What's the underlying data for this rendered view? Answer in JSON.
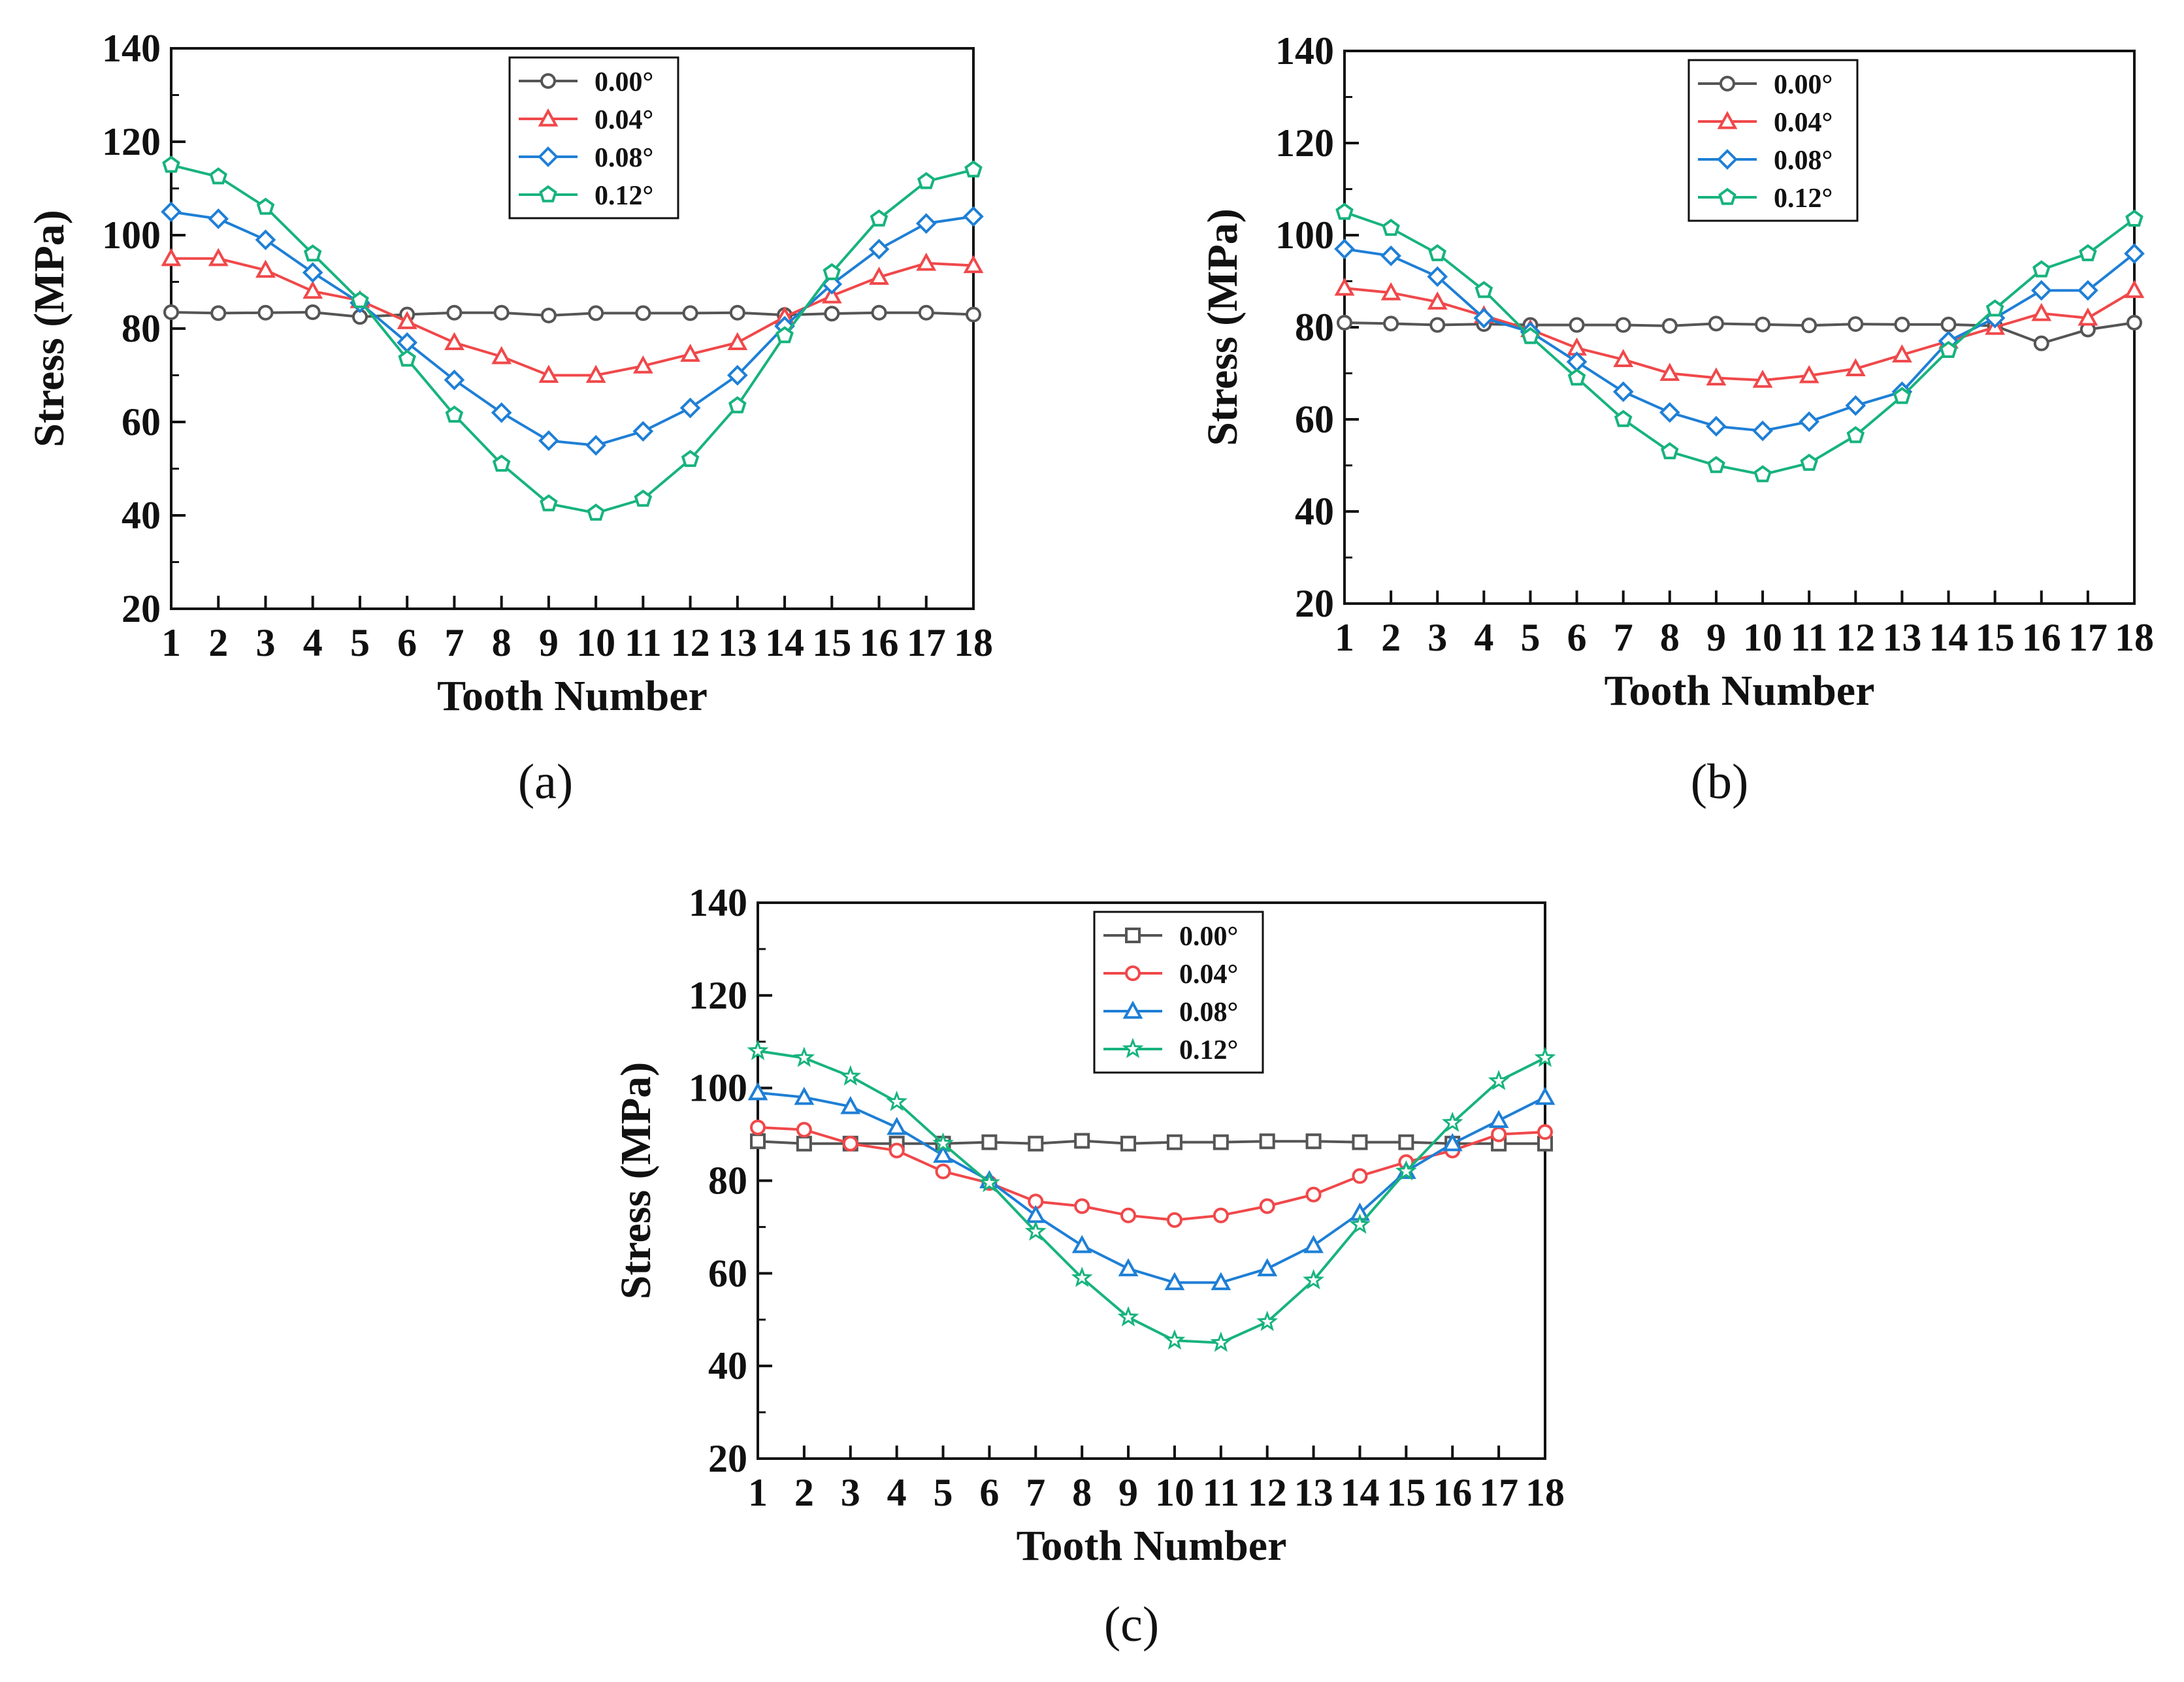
{
  "figure": {
    "panel_labels": [
      "(a)",
      "(b)",
      "(c)"
    ]
  },
  "colors": {
    "0.00°": "#555555",
    "0.04°": "#f0484a",
    "0.08°": "#1e7fd6",
    "0.12°": "#17b37d",
    "axis": "#111111"
  },
  "chart_data": [
    {
      "type": "line",
      "panel": "(a)",
      "xlabel": "Tooth Number",
      "ylabel": "Stress (MPa)",
      "ylim": [
        20,
        140
      ],
      "xlim": [
        1,
        18
      ],
      "yticks": [
        20,
        40,
        60,
        80,
        100,
        120,
        140
      ],
      "x": [
        1,
        2,
        3,
        4,
        5,
        6,
        7,
        8,
        9,
        10,
        11,
        12,
        13,
        14,
        15,
        16,
        17,
        18
      ],
      "legend_position": "top-center",
      "series": [
        {
          "name": "0.00°",
          "marker": "circle",
          "color": "#555555",
          "values": [
            83.5,
            83.3,
            83.4,
            83.5,
            82.5,
            83.0,
            83.4,
            83.4,
            82.8,
            83.3,
            83.3,
            83.3,
            83.4,
            82.9,
            83.2,
            83.4,
            83.4,
            83.0
          ]
        },
        {
          "name": "0.04°",
          "marker": "triangle",
          "color": "#f0484a",
          "values": [
            95,
            95,
            92.5,
            88,
            86,
            81.5,
            77,
            74,
            70,
            70,
            72,
            74.5,
            77,
            82.5,
            87,
            91,
            94,
            93.5
          ]
        },
        {
          "name": "0.08°",
          "marker": "diamond",
          "color": "#1e7fd6",
          "values": [
            105,
            103.5,
            99,
            92,
            85.5,
            77,
            69,
            62,
            56,
            55,
            58,
            63,
            70,
            80.5,
            89.5,
            97,
            102.5,
            104
          ]
        },
        {
          "name": "0.12°",
          "marker": "pentagon",
          "color": "#17b37d",
          "values": [
            115,
            112.5,
            106,
            96,
            86,
            73.5,
            61.5,
            51,
            42.5,
            40.5,
            43.5,
            52,
            63.5,
            78.5,
            92,
            103.5,
            111.5,
            114
          ]
        }
      ]
    },
    {
      "type": "line",
      "panel": "(b)",
      "xlabel": "Tooth Number",
      "ylabel": "Stress (MPa)",
      "ylim": [
        20,
        140
      ],
      "xlim": [
        1,
        18
      ],
      "yticks": [
        20,
        40,
        60,
        80,
        100,
        120,
        140
      ],
      "x": [
        1,
        2,
        3,
        4,
        5,
        6,
        7,
        8,
        9,
        10,
        11,
        12,
        13,
        14,
        15,
        16,
        17,
        18
      ],
      "legend_position": "top-center",
      "series": [
        {
          "name": "0.00°",
          "marker": "circle",
          "color": "#555555",
          "values": [
            81,
            80.8,
            80.5,
            80.7,
            80.5,
            80.5,
            80.5,
            80.3,
            80.8,
            80.6,
            80.4,
            80.7,
            80.6,
            80.6,
            80.3,
            76.5,
            79.5,
            81
          ]
        },
        {
          "name": "0.04°",
          "marker": "triangle",
          "color": "#f0484a",
          "values": [
            88.5,
            87.5,
            85.5,
            82.5,
            79.5,
            75.5,
            73,
            70,
            69,
            68.5,
            69.5,
            71,
            74,
            77,
            80,
            83,
            82,
            88
          ]
        },
        {
          "name": "0.08°",
          "marker": "diamond",
          "color": "#1e7fd6",
          "values": [
            97,
            95.5,
            91,
            82,
            79,
            72.5,
            66,
            61.5,
            58.5,
            57.5,
            59.5,
            63,
            66,
            77,
            82,
            88,
            88,
            96
          ]
        },
        {
          "name": "0.12°",
          "marker": "pentagon",
          "color": "#17b37d",
          "values": [
            105,
            101.5,
            96,
            88,
            78,
            69,
            60,
            53,
            50,
            48,
            50.5,
            56.5,
            65,
            75,
            84,
            92.5,
            96,
            103.5
          ]
        }
      ]
    },
    {
      "type": "line",
      "panel": "(c)",
      "xlabel": "Tooth Number",
      "ylabel": "Stress (MPa)",
      "ylim": [
        20,
        140
      ],
      "xlim": [
        1,
        18
      ],
      "yticks": [
        20,
        40,
        60,
        80,
        100,
        120,
        140
      ],
      "x": [
        1,
        2,
        3,
        4,
        5,
        6,
        7,
        8,
        9,
        10,
        11,
        12,
        13,
        14,
        15,
        16,
        17,
        18
      ],
      "legend_position": "top-center",
      "series": [
        {
          "name": "0.00°",
          "marker": "square",
          "color": "#555555",
          "values": [
            88.5,
            88,
            88,
            88,
            88,
            88.3,
            88,
            88.6,
            88,
            88.3,
            88.3,
            88.5,
            88.5,
            88.3,
            88.3,
            88,
            88,
            88
          ]
        },
        {
          "name": "0.04°",
          "marker": "circle",
          "color": "#f0484a",
          "values": [
            91.5,
            91,
            88,
            86.5,
            82,
            79.5,
            75.5,
            74.5,
            72.5,
            71.5,
            72.5,
            74.5,
            77,
            81,
            84,
            86.5,
            90,
            90.5
          ]
        },
        {
          "name": "0.08°",
          "marker": "triangle",
          "color": "#1e7fd6",
          "values": [
            99,
            98,
            96,
            91.5,
            85.5,
            80,
            72.5,
            66,
            61,
            58,
            58,
            61,
            66,
            73,
            82,
            88,
            93,
            98
          ]
        },
        {
          "name": "0.12°",
          "marker": "star",
          "color": "#17b37d",
          "values": [
            108,
            106.5,
            102.5,
            97,
            88,
            79.5,
            69,
            59,
            50.5,
            45.5,
            45,
            49.5,
            58.5,
            70.5,
            82,
            92.5,
            101.5,
            106.5
          ]
        }
      ]
    }
  ]
}
